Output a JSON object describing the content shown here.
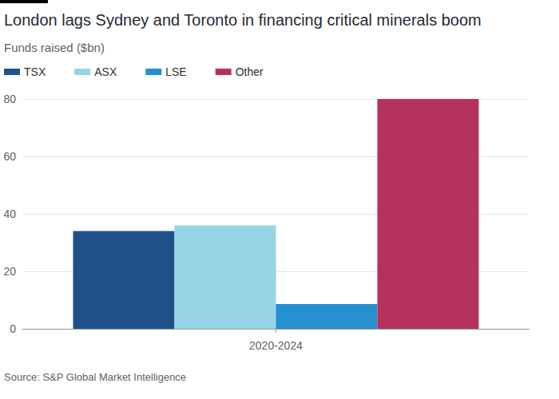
{
  "chart_data": {
    "type": "bar",
    "title": "London lags Sydney and Toronto in financing critical minerals boom",
    "subtitle": "Funds raised ($bn)",
    "source": "Source: S&P Global Market Intelligence",
    "categories": [
      "2020-2024"
    ],
    "series": [
      {
        "name": "TSX",
        "color": "#215189",
        "values": [
          34
        ]
      },
      {
        "name": "ASX",
        "color": "#96d4e6",
        "values": [
          36
        ]
      },
      {
        "name": "LSE",
        "color": "#2490d0",
        "values": [
          8.6
        ]
      },
      {
        "name": "Other",
        "color": "#b5325d",
        "values": [
          80
        ]
      }
    ],
    "ylim": [
      0,
      80
    ],
    "yticks": [
      0,
      20,
      40,
      60,
      80
    ],
    "grid": true,
    "legend": "top-left"
  }
}
